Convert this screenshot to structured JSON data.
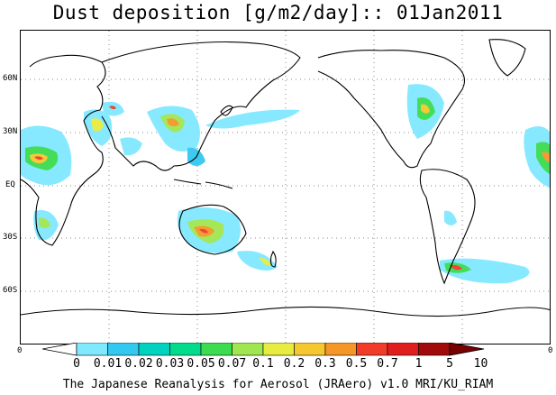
{
  "title": "Dust deposition [g/m2/day]:: 01Jan2011",
  "latitude_labels": [
    "60N",
    "30N",
    "EQ",
    "30S",
    "60S"
  ],
  "axis_corner_labels": {
    "left": "0",
    "right": "0"
  },
  "colorbar": {
    "tick_labels": [
      "0",
      "0.01",
      "0.02",
      "0.03",
      "0.05",
      "0.07",
      "0.1",
      "0.2",
      "0.3",
      "0.5",
      "0.7",
      "1",
      "5",
      "10"
    ],
    "colors": [
      "#ffffff",
      "#80e8ff",
      "#33c8f0",
      "#00d2c0",
      "#00dc8c",
      "#3cdc50",
      "#a0e650",
      "#e6ec40",
      "#f5c830",
      "#f59628",
      "#f03c28",
      "#e11e1e",
      "#a00a0a",
      "#780000"
    ]
  },
  "footer": "The Japanese Reanalysis for Aerosol (JRAero) v1.0 MRI/KU_RIAM"
}
